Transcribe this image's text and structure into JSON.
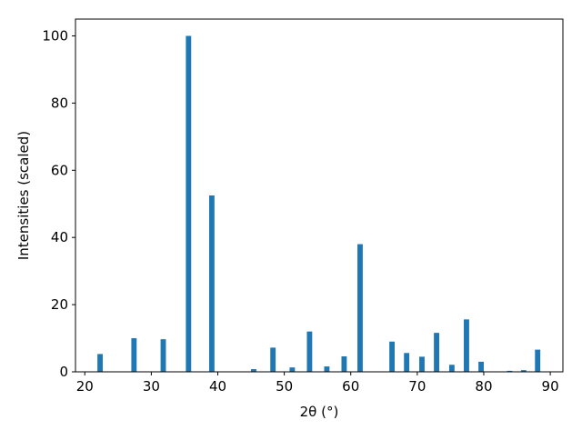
{
  "chart_data": {
    "type": "bar",
    "xlabel": "2θ (°)",
    "ylabel": "Intensities (scaled)",
    "x": [
      22.3,
      27.4,
      31.8,
      35.6,
      39.1,
      45.4,
      48.3,
      51.2,
      53.8,
      56.4,
      59.0,
      61.4,
      66.2,
      68.4,
      70.7,
      72.9,
      75.2,
      77.4,
      79.6,
      83.9,
      86.0,
      88.1
    ],
    "values": [
      5.3,
      10,
      9.7,
      100,
      52.5,
      0.8,
      7.2,
      1.3,
      12,
      1.6,
      4.6,
      38,
      9,
      5.6,
      4.5,
      11.6,
      2.1,
      15.6,
      3,
      0.3,
      0.5,
      6.6
    ],
    "bar_width": 0.8,
    "color": "#1f77b4",
    "xlim": [
      18.6,
      91.9
    ],
    "xticks": [
      20,
      30,
      40,
      50,
      60,
      70,
      80,
      90
    ],
    "ylim": [
      0,
      105
    ],
    "yticks": [
      0,
      20,
      40,
      60,
      80,
      100
    ]
  }
}
